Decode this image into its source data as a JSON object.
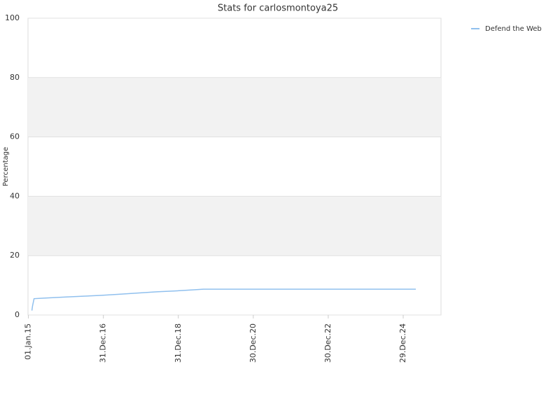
{
  "chart_data": {
    "type": "line",
    "title": "Stats for carlosmontoya25",
    "y_label": "Percentage",
    "x": [
      "2015-02-04",
      "2015-02-10",
      "2015-02-25",
      "2015-06-01",
      "2015-12-01",
      "2016-06-01",
      "2016-12-01",
      "2017-06-01",
      "2017-12-01",
      "2018-06-01",
      "2018-12-01",
      "2019-06-01",
      "2019-09-01",
      "2025-05-01"
    ],
    "series": [
      {
        "name": "Defend the Web",
        "color": "#90c0ee",
        "values": [
          1.5,
          3,
          5.5,
          5.7,
          6.0,
          6.3,
          6.6,
          7.0,
          7.4,
          7.8,
          8.1,
          8.5,
          8.7,
          8.7
        ]
      }
    ],
    "xlim": [
      "2014-12-28",
      "2026-01-01"
    ],
    "xticks": [
      {
        "value": "2015-01-01",
        "label": "01.Jan.15"
      },
      {
        "value": "2016-12-31",
        "label": "31.Dec.16"
      },
      {
        "value": "2018-12-31",
        "label": "31.Dec.18"
      },
      {
        "value": "2020-12-30",
        "label": "30.Dec.20"
      },
      {
        "value": "2022-12-30",
        "label": "30.Dec.22"
      },
      {
        "value": "2024-12-29",
        "label": "29.Dec.24"
      }
    ],
    "ylim": [
      0,
      100
    ],
    "yticks": [
      0,
      20,
      40,
      60,
      80,
      100
    ],
    "grid": true,
    "legend": "top-right"
  }
}
